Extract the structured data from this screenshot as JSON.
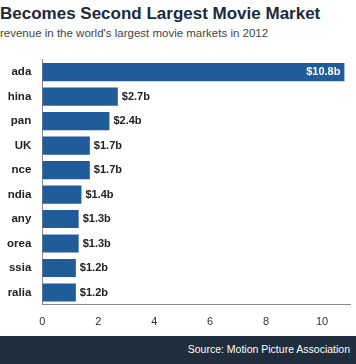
{
  "chart_data": {
    "type": "bar",
    "orientation": "horizontal",
    "title": "Becomes Second Largest Movie Market",
    "subtitle": "revenue in the world's largest movie markets in 2012",
    "source": "Source: Motion Picture Association",
    "categories": [
      "ada",
      "hina",
      "pan",
      "UK",
      "nce",
      "ndia",
      "any",
      "orea",
      "ssia",
      "ralia"
    ],
    "values": [
      10.8,
      2.7,
      2.4,
      1.7,
      1.7,
      1.4,
      1.3,
      1.3,
      1.2,
      1.2
    ],
    "value_labels": [
      "$10.8b",
      "$2.7b",
      "$2.4b",
      "$1.7b",
      "$1.7b",
      "$1.4b",
      "$1.3b",
      "$1.3b",
      "$1.2b",
      "$1.2b"
    ],
    "data_labels": true,
    "color": "#1f5c99",
    "xlim": [
      0,
      11
    ],
    "xticks": [
      0,
      2,
      4,
      6,
      8,
      10
    ],
    "grid": false
  }
}
